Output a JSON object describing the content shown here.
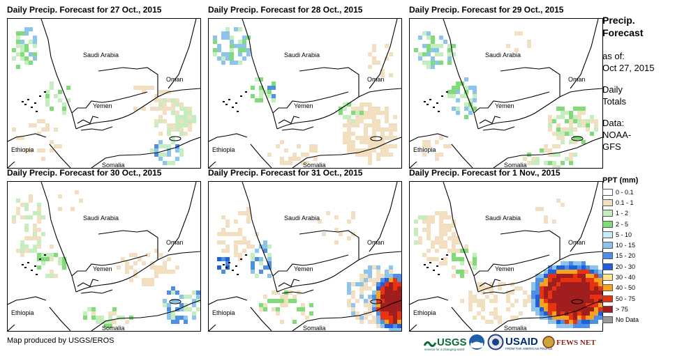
{
  "panels": [
    {
      "title": "Daily Precip. Forecast for 27 Oct., 2015"
    },
    {
      "title": "Daily Precip. Forecast for 28 Oct., 2015"
    },
    {
      "title": "Daily Precip. Forecast for 29 Oct., 2015"
    },
    {
      "title": "Daily Precip. Forecast for 30 Oct., 2015"
    },
    {
      "title": "Daily Precip. Forecast for 31 Oct., 2015"
    },
    {
      "title": "Daily Precip. Forecast for 1 Nov., 2015"
    }
  ],
  "map_labels": {
    "saudi": "Saudi Arabia",
    "oman": "Oman",
    "yemen": "Yemen",
    "ethiopia": "Ethiopia",
    "somalia": "Somalia"
  },
  "sidebar": {
    "title_line1": "Precip.",
    "title_line2": "Forecast",
    "asof_label": "as of:",
    "asof_date": "Oct 27, 2015",
    "daily_line1": "Daily",
    "daily_line2": "Totals",
    "data_line1": "Data:",
    "data_line2": "NOAA-",
    "data_line3": "GFS"
  },
  "legend": {
    "title": "PPT (mm)",
    "items": [
      {
        "label": "0 - 0.1",
        "color": "#ffffff"
      },
      {
        "label": "0.1 - 1",
        "color": "#f2dfc0"
      },
      {
        "label": "1 - 2",
        "color": "#c4eec0"
      },
      {
        "label": "2 - 5",
        "color": "#7fdc76"
      },
      {
        "label": "5 - 10",
        "color": "#c8ecf8"
      },
      {
        "label": "10 - 15",
        "color": "#8cc4ee"
      },
      {
        "label": "15 - 20",
        "color": "#4d8fe6"
      },
      {
        "label": "20 - 30",
        "color": "#1c5fe0"
      },
      {
        "label": "30 - 40",
        "color": "#ffe58a"
      },
      {
        "label": "40 - 50",
        "color": "#f5a21c"
      },
      {
        "label": "50 - 75",
        "color": "#e8330e"
      },
      {
        "label": "> 75",
        "color": "#a01e1e"
      },
      {
        "label": "No Data",
        "color": "#9a9a9a"
      }
    ]
  },
  "footer": {
    "credit": "Map produced by USGS/EROS",
    "logo_usgs": "USGS",
    "logo_usgs_tag": "science for a changing world",
    "logo_usaid": "USAID",
    "logo_usaid_tag": "FROM THE AMERICAN PEOPLE",
    "logo_fews": "FEWS NET"
  }
}
